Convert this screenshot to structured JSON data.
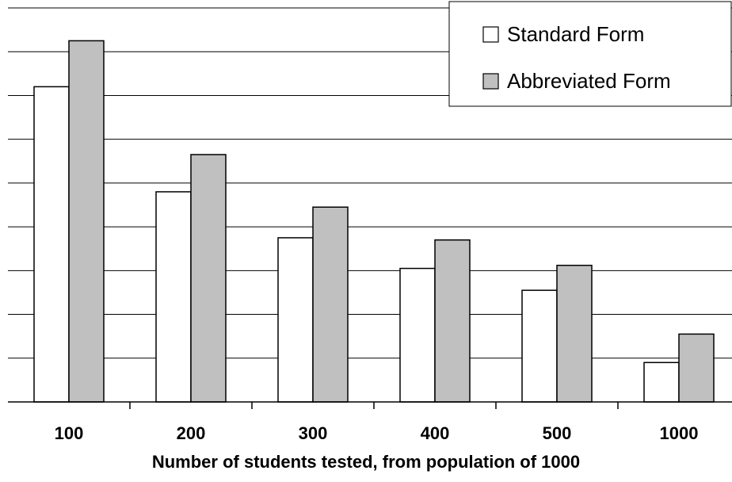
{
  "chart_data": {
    "type": "bar",
    "categories": [
      "100",
      "200",
      "300",
      "400",
      "500",
      "1000"
    ],
    "series": [
      {
        "name": "Standard Form",
        "values": [
          7.2,
          4.8,
          3.75,
          3.05,
          2.55,
          0.9
        ],
        "color": "#ffffff"
      },
      {
        "name": "Abbreviated Form",
        "values": [
          8.25,
          5.65,
          4.45,
          3.7,
          3.12,
          1.55
        ],
        "color": "#c0c0c0"
      }
    ],
    "title": "",
    "xlabel": "Number of students tested, from population of 1000",
    "ylabel": "",
    "ylim": [
      0,
      9
    ],
    "grid": true,
    "legend": "top-right",
    "gridline_color": "#000000"
  }
}
